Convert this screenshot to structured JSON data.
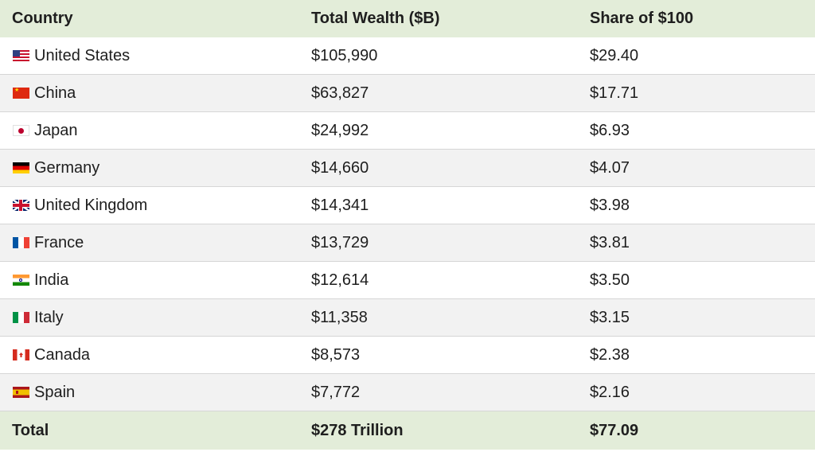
{
  "headers": {
    "country": "Country",
    "wealth": "Total Wealth ($B)",
    "share": "Share of $100"
  },
  "rows": [
    {
      "flag": "us-flag-icon",
      "country": "United States",
      "wealth": "$105,990",
      "share": "$29.40"
    },
    {
      "flag": "cn-flag-icon",
      "country": "China",
      "wealth": "$63,827",
      "share": "$17.71"
    },
    {
      "flag": "jp-flag-icon",
      "country": "Japan",
      "wealth": "$24,992",
      "share": "$6.93"
    },
    {
      "flag": "de-flag-icon",
      "country": "Germany",
      "wealth": "$14,660",
      "share": "$4.07"
    },
    {
      "flag": "gb-flag-icon",
      "country": "United Kingdom",
      "wealth": "$14,341",
      "share": "$3.98"
    },
    {
      "flag": "fr-flag-icon",
      "country": "France",
      "wealth": "$13,729",
      "share": "$3.81"
    },
    {
      "flag": "in-flag-icon",
      "country": "India",
      "wealth": "$12,614",
      "share": "$3.50"
    },
    {
      "flag": "it-flag-icon",
      "country": "Italy",
      "wealth": "$11,358",
      "share": "$3.15"
    },
    {
      "flag": "ca-flag-icon",
      "country": "Canada",
      "wealth": "$8,573",
      "share": "$2.38"
    },
    {
      "flag": "es-flag-icon",
      "country": "Spain",
      "wealth": "$7,772",
      "share": "$2.16"
    }
  ],
  "total": {
    "label": "Total",
    "wealth": "$278 Trillion",
    "share": "$77.09"
  },
  "colors": {
    "header_bg": "#e3edd9",
    "alt_row_bg": "#f2f2f2",
    "row_divider": "#d6d6d6"
  }
}
